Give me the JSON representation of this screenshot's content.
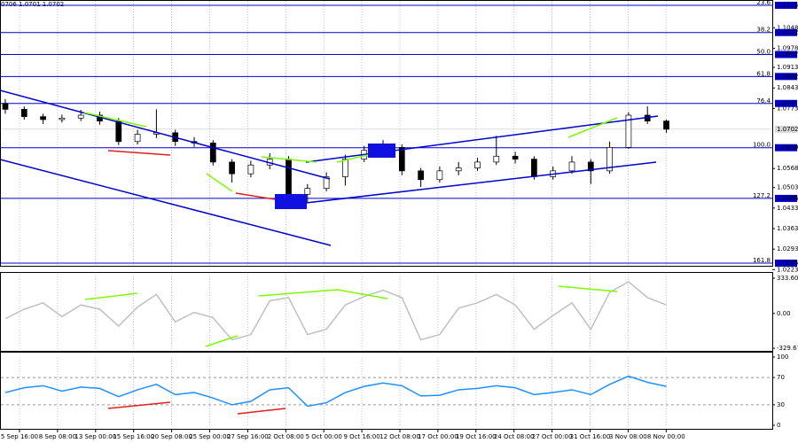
{
  "chart_data": [
    {
      "type": "candlestick",
      "title": "0706 1.0701 1.0702",
      "ylim": [
        1.0236,
        1.1143
      ],
      "yticks": [
        1.1048,
        1.0978,
        1.0913,
        1.0843,
        1.0773,
        1.0568,
        1.0503,
        1.0433,
        1.0363,
        1.0293,
        1.0223
      ],
      "last_price": 1.0702,
      "levels": [
        {
          "label": "23.6",
          "value": 1.1125
        },
        {
          "label": "38.2",
          "value": 1.1032
        },
        {
          "label": "50.0",
          "value": 1.0957
        },
        {
          "label": "61.8",
          "value": 1.0882
        },
        {
          "label": "76.4",
          "value": 1.079
        },
        {
          "label": "100.0",
          "value": 1.0639
        },
        {
          "label": "127.2",
          "value": 1.0466
        },
        {
          "label": "161.8",
          "value": 1.0245
        }
      ],
      "level_color": "#0000cc",
      "up_color": "#ffffff",
      "down_color": "#000000",
      "grid": true,
      "open": [
        1.079,
        1.077,
        1.0745,
        1.0735,
        1.074,
        1.075,
        1.073,
        1.066,
        1.0685,
        1.069,
        1.066,
        1.0655,
        1.059,
        1.055,
        1.058,
        1.06,
        1.048,
        1.05,
        1.054,
        1.06,
        1.063,
        1.064,
        1.056,
        1.053,
        1.056,
        1.057,
        1.059,
        1.061,
        1.06,
        1.054,
        1.056,
        1.059,
        1.056,
        1.064,
        1.075,
        1.073
      ],
      "high": [
        1.0805,
        1.078,
        1.0755,
        1.0752,
        1.0768,
        1.0762,
        1.074,
        1.07,
        1.077,
        1.07,
        1.0675,
        1.0665,
        1.06,
        1.0595,
        1.062,
        1.061,
        1.0515,
        1.0555,
        1.0615,
        1.0645,
        1.0665,
        1.065,
        1.057,
        1.0575,
        1.059,
        1.0605,
        1.068,
        1.0625,
        1.061,
        1.0575,
        1.061,
        1.06,
        1.066,
        1.076,
        1.078,
        1.0735
      ],
      "low": [
        1.0755,
        1.0735,
        1.072,
        1.0725,
        1.073,
        1.0718,
        1.0648,
        1.065,
        1.0672,
        1.0645,
        1.0642,
        1.0578,
        1.052,
        1.0538,
        1.0565,
        1.046,
        1.0452,
        1.049,
        1.051,
        1.059,
        1.0615,
        1.0545,
        1.0505,
        1.052,
        1.0545,
        1.056,
        1.058,
        1.0585,
        1.053,
        1.053,
        1.055,
        1.0515,
        1.055,
        1.0635,
        1.072,
        1.069
      ],
      "close": [
        1.077,
        1.0745,
        1.0735,
        1.074,
        1.075,
        1.073,
        1.066,
        1.0685,
        1.069,
        1.066,
        1.0655,
        1.059,
        1.055,
        1.058,
        1.06,
        1.048,
        1.05,
        1.054,
        1.06,
        1.063,
        1.064,
        1.056,
        1.053,
        1.056,
        1.057,
        1.059,
        1.061,
        1.06,
        1.054,
        1.056,
        1.059,
        1.056,
        1.064,
        1.075,
        1.073,
        1.0702
      ]
    },
    {
      "type": "line",
      "ylim": [
        -363,
        384
      ],
      "yticks": [
        333.6036,
        {
          "value": 0,
          "label": "0.00"
        },
        -329.675
      ],
      "series": [
        {
          "color": "#c0c0c0",
          "values": [
            -50,
            40,
            100,
            -30,
            80,
            40,
            -120,
            60,
            180,
            -80,
            10,
            -40,
            -250,
            -200,
            120,
            150,
            -200,
            -150,
            80,
            160,
            220,
            150,
            -250,
            -200,
            50,
            100,
            180,
            80,
            -150,
            -20,
            100,
            -150,
            200,
            300,
            150,
            80
          ]
        }
      ]
    },
    {
      "type": "line",
      "ylim": [
        0,
        100
      ],
      "yticks": [
        100,
        70,
        30,
        0
      ],
      "levels_dashed": [
        70,
        30
      ],
      "series": [
        {
          "color": "#1e90ff",
          "values": [
            48,
            55,
            58,
            50,
            56,
            54,
            42,
            52,
            60,
            45,
            48,
            40,
            30,
            35,
            52,
            55,
            28,
            33,
            48,
            57,
            62,
            58,
            43,
            44,
            52,
            54,
            58,
            55,
            45,
            48,
            52,
            45,
            60,
            72,
            63,
            57
          ]
        }
      ],
      "x_labels": [
        "5 Sep 16:00",
        "8 Sep 08:00",
        "13 Sep 00:00",
        "15 Sep 16:00",
        "20 Sep 08:00",
        "25 Sep 00:00",
        "27 Sep 16:00",
        "2 Oct 08:00",
        "5 Oct 00:00",
        "9 Oct 16:00",
        "12 Oct 08:00",
        "17 Oct 00:00",
        "19 Oct 16:00",
        "24 Oct 08:00",
        "27 Oct 00:00",
        "31 Oct 16:00",
        "3 Nov 08:00",
        "8 Nov 00:00"
      ]
    }
  ]
}
